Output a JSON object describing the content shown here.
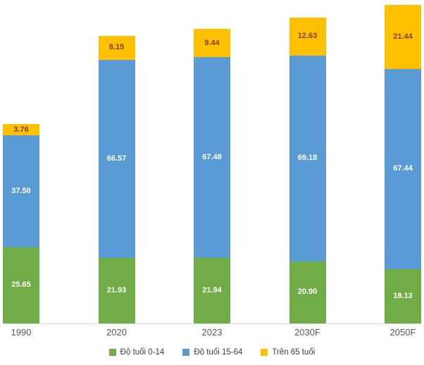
{
  "chart_data": {
    "type": "bar",
    "stacked": true,
    "title": "",
    "xlabel": "",
    "ylabel": "",
    "grid": false,
    "legend_position": "bottom",
    "ylim": [
      0,
      110
    ],
    "categories": [
      "1990",
      "2020",
      "2023",
      "2030F",
      "2050F"
    ],
    "series": [
      {
        "name": "Độ tuổi 0-14",
        "color": "#70AD47",
        "label_color": "#FFFFFF",
        "values": [
          25.65,
          21.93,
          21.94,
          20.9,
          18.13
        ]
      },
      {
        "name": "Độ tuổi 15-64",
        "color": "#5B9BD5",
        "label_color": "#FFFFFF",
        "values": [
          37.5,
          66.57,
          67.48,
          69.18,
          67.44
        ]
      },
      {
        "name": "Trên 65 tuổi",
        "color": "#FFC000",
        "label_color": "#843C0C",
        "values": [
          3.76,
          8.15,
          9.44,
          12.63,
          21.44
        ]
      }
    ],
    "totals": [
      66.91,
      96.65,
      98.86,
      102.71,
      107.01
    ],
    "value_format": "2-decimals",
    "axis_line_color": "#D9D9D9"
  }
}
